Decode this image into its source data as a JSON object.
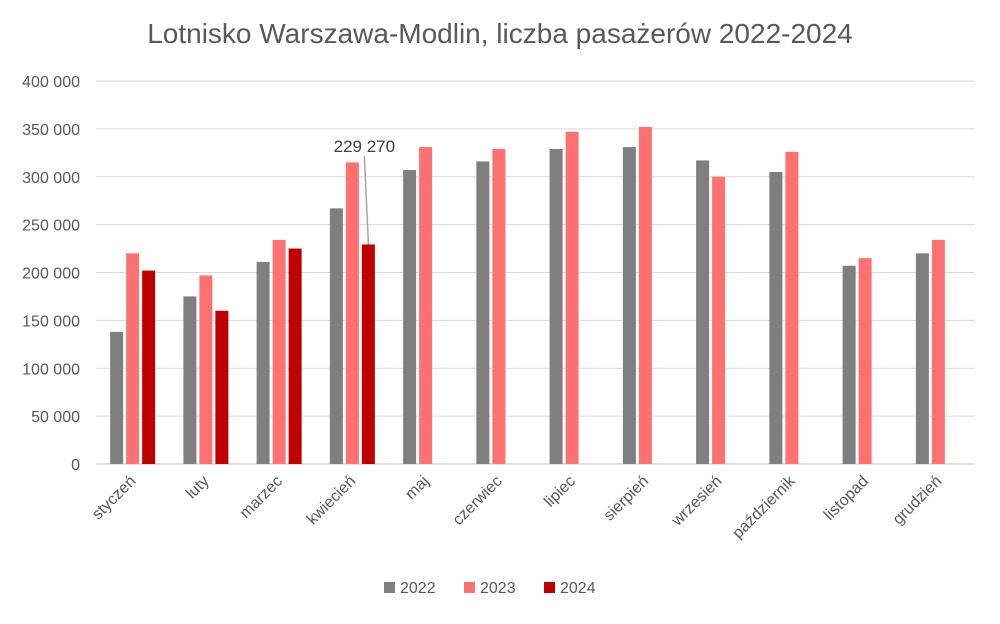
{
  "chart_data": {
    "type": "bar",
    "title": "Lotnisko Warszawa-Modlin, liczba pasażerów 2022-2024",
    "categories": [
      "styczeń",
      "luty",
      "marzec",
      "kwiecień",
      "maj",
      "czerwiec",
      "lipiec",
      "sierpień",
      "wrzesień",
      "październik",
      "listopad",
      "grudzień"
    ],
    "series": [
      {
        "name": "2022",
        "color": "#7f7f7f",
        "values": [
          138000,
          175000,
          211000,
          267000,
          307000,
          316000,
          329000,
          331000,
          317000,
          305000,
          207000,
          220000
        ]
      },
      {
        "name": "2023",
        "color": "#ff7171",
        "values": [
          220000,
          197000,
          234000,
          315000,
          331000,
          329000,
          347000,
          352000,
          300000,
          326000,
          215000,
          234000
        ]
      },
      {
        "name": "2024",
        "color": "#c00000",
        "values": [
          202000,
          160000,
          225000,
          229270,
          null,
          null,
          null,
          null,
          null,
          null,
          null,
          null
        ]
      }
    ],
    "ylim": [
      0,
      400000
    ],
    "yticks": [
      0,
      50000,
      100000,
      150000,
      200000,
      250000,
      300000,
      350000,
      400000
    ],
    "ytick_labels": [
      "0",
      "50 000",
      "100 000",
      "150 000",
      "200 000",
      "250 000",
      "300 000",
      "350 000",
      "400 000"
    ],
    "grid": true,
    "legend_position": "bottom",
    "annotation": {
      "text": "229 270",
      "series": "2024",
      "category": "kwiecień"
    }
  }
}
